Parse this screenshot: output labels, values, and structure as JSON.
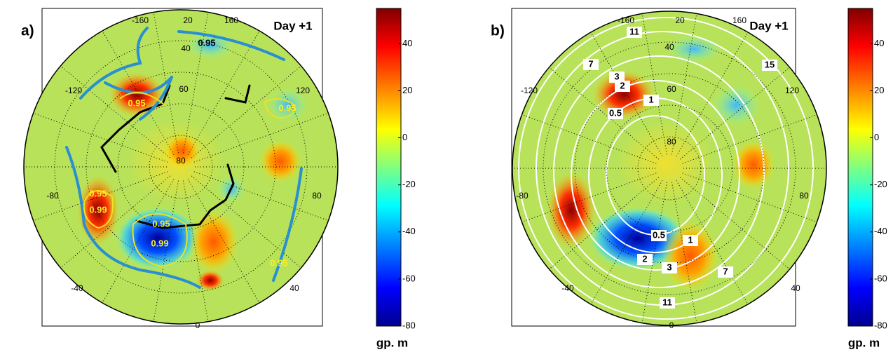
{
  "panels": [
    {
      "label": "a)",
      "title": "Day +1",
      "longitude_labels": [
        "-160",
        "20",
        "160",
        "40",
        "-120",
        "60",
        "120",
        "80",
        "-80",
        "80",
        "-40",
        "40",
        "0"
      ],
      "contour_labels": [
        "0.95",
        "0.95",
        "0.95",
        "0.95",
        "0.99",
        "0.95",
        "0.99",
        "0.95"
      ],
      "colorbar": {
        "lim": [
          -80,
          55
        ],
        "ticks": [
          40,
          20,
          0,
          -20,
          -40,
          -60,
          -80
        ],
        "unit": "gp. m"
      }
    },
    {
      "label": "b)",
      "title": "Day +1",
      "longitude_labels": [
        "-160",
        "20",
        "160",
        "40",
        "-120",
        "60",
        "120",
        "80",
        "-80",
        "80",
        "-40",
        "40",
        "0"
      ],
      "contour_labels": [
        "11",
        "7",
        "15",
        "3",
        "2",
        "1",
        "0.5",
        "0.5",
        "1",
        "2",
        "3",
        "7",
        "11"
      ],
      "colorbar": {
        "lim": [
          -80,
          55
        ],
        "ticks": [
          40,
          20,
          0,
          -20,
          -40,
          -60,
          -80
        ],
        "unit": "gp. m"
      }
    }
  ]
}
